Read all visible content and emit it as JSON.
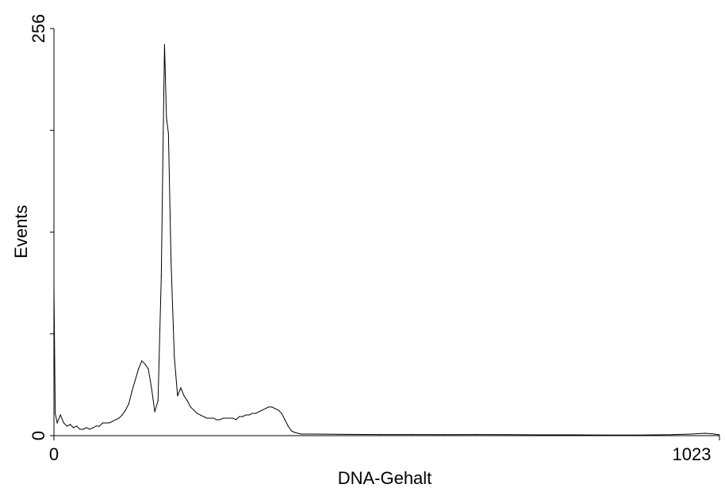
{
  "colors": {
    "background": "#ffffff",
    "axis": "#000000",
    "series": "#000000"
  },
  "chart_data": {
    "type": "line",
    "title": "",
    "xlabel": "DNA-Gehalt",
    "ylabel": "Events",
    "xlim": [
      0,
      1023
    ],
    "ylim": [
      0,
      256
    ],
    "grid": false,
    "x_ticks": [
      {
        "value": 0,
        "label": "0"
      },
      {
        "value": 1023,
        "label": "1023"
      }
    ],
    "y_ticks": [
      {
        "value": 0,
        "label": "0"
      },
      {
        "value": 64,
        "label": ""
      },
      {
        "value": 128,
        "label": ""
      },
      {
        "value": 192,
        "label": ""
      },
      {
        "value": 256,
        "label": "256"
      }
    ],
    "series": [
      {
        "color": "#000000",
        "points": [
          [
            0,
            93
          ],
          [
            2,
            14
          ],
          [
            5,
            8
          ],
          [
            10,
            13
          ],
          [
            15,
            8
          ],
          [
            20,
            6
          ],
          [
            25,
            7
          ],
          [
            30,
            5
          ],
          [
            35,
            6
          ],
          [
            40,
            4
          ],
          [
            45,
            4
          ],
          [
            50,
            5
          ],
          [
            55,
            4
          ],
          [
            60,
            5
          ],
          [
            65,
            6
          ],
          [
            70,
            6
          ],
          [
            75,
            8
          ],
          [
            80,
            8
          ],
          [
            85,
            8
          ],
          [
            90,
            9
          ],
          [
            95,
            10
          ],
          [
            100,
            11
          ],
          [
            105,
            13
          ],
          [
            110,
            16
          ],
          [
            115,
            20
          ],
          [
            120,
            28
          ],
          [
            125,
            35
          ],
          [
            130,
            42
          ],
          [
            135,
            47
          ],
          [
            140,
            45
          ],
          [
            145,
            42
          ],
          [
            150,
            30
          ],
          [
            155,
            15
          ],
          [
            160,
            22
          ],
          [
            165,
            100
          ],
          [
            168,
            190
          ],
          [
            170,
            246
          ],
          [
            173,
            200
          ],
          [
            176,
            190
          ],
          [
            180,
            110
          ],
          [
            185,
            50
          ],
          [
            190,
            25
          ],
          [
            195,
            30
          ],
          [
            200,
            25
          ],
          [
            205,
            22
          ],
          [
            210,
            18
          ],
          [
            215,
            16
          ],
          [
            220,
            14
          ],
          [
            225,
            13
          ],
          [
            230,
            12
          ],
          [
            235,
            11
          ],
          [
            240,
            11
          ],
          [
            245,
            11
          ],
          [
            250,
            10
          ],
          [
            255,
            10
          ],
          [
            260,
            11
          ],
          [
            265,
            11
          ],
          [
            270,
            11
          ],
          [
            275,
            11
          ],
          [
            280,
            10
          ],
          [
            285,
            12
          ],
          [
            290,
            12
          ],
          [
            295,
            13
          ],
          [
            300,
            13
          ],
          [
            305,
            14
          ],
          [
            310,
            14
          ],
          [
            315,
            15
          ],
          [
            320,
            16
          ],
          [
            325,
            17
          ],
          [
            330,
            18
          ],
          [
            335,
            18
          ],
          [
            340,
            17
          ],
          [
            345,
            16
          ],
          [
            350,
            14
          ],
          [
            355,
            10
          ],
          [
            360,
            6
          ],
          [
            365,
            3
          ],
          [
            370,
            2
          ],
          [
            380,
            1
          ],
          [
            400,
            1
          ],
          [
            450,
            0.8
          ],
          [
            500,
            0.7
          ],
          [
            550,
            0.7
          ],
          [
            600,
            0.6
          ],
          [
            650,
            0.7
          ],
          [
            700,
            0.6
          ],
          [
            750,
            0.5
          ],
          [
            800,
            0.5
          ],
          [
            850,
            0.4
          ],
          [
            900,
            0.4
          ],
          [
            950,
            0.6
          ],
          [
            980,
            1
          ],
          [
            1000,
            1.5
          ],
          [
            1015,
            1
          ],
          [
            1023,
            0.5
          ]
        ]
      }
    ]
  }
}
